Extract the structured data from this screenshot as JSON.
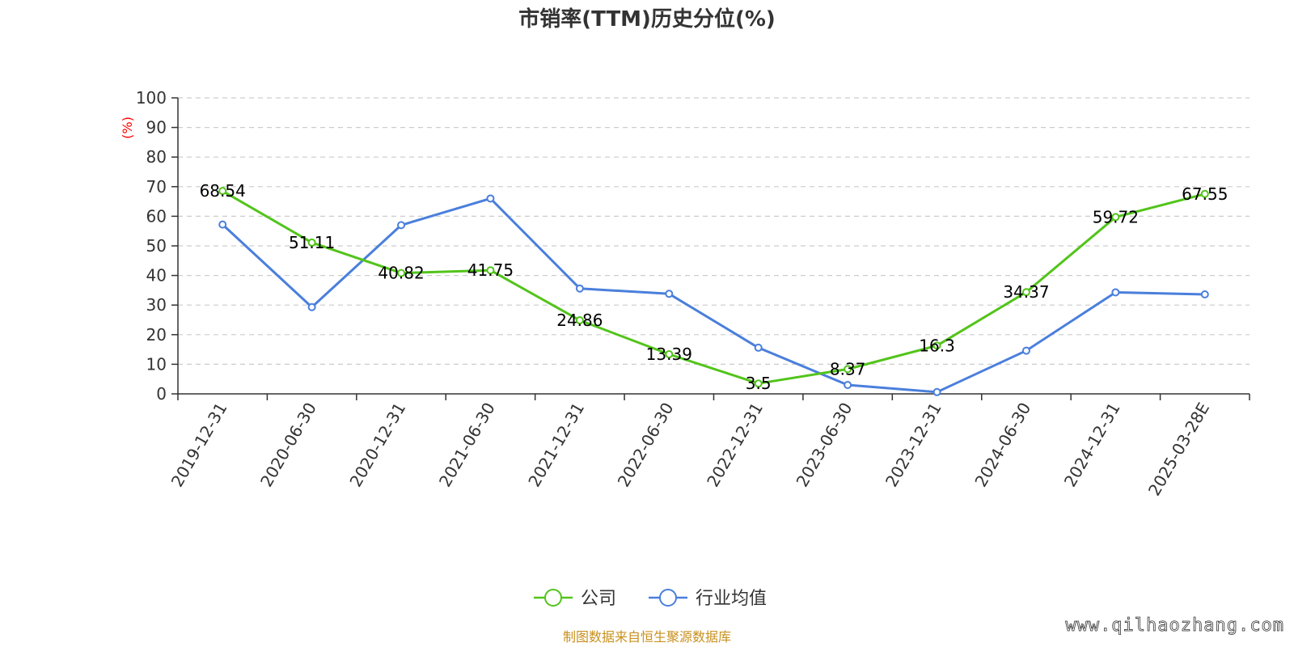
{
  "chart_data": {
    "type": "line",
    "title": "市销率(TTM)历史分位(%)",
    "ylabel": "(%)",
    "ylim": [
      0,
      100
    ],
    "ytick_step": 10,
    "grid": true,
    "legend_position": "bottom-center",
    "categories": [
      "2019-12-31",
      "2020-06-30",
      "2020-12-31",
      "2021-06-30",
      "2021-12-31",
      "2022-06-30",
      "2022-12-31",
      "2023-06-30",
      "2023-12-31",
      "2024-06-30",
      "2024-12-31",
      "2025-03-28E"
    ],
    "series": [
      {
        "name": "公司",
        "color": "#52c41a",
        "show_labels": true,
        "values": [
          68.54,
          51.11,
          40.82,
          41.75,
          24.86,
          13.39,
          3.5,
          8.37,
          16.3,
          34.37,
          59.72,
          67.55
        ]
      },
      {
        "name": "行业均值",
        "color": "#4a7fdc",
        "show_labels": false,
        "values": [
          57.2,
          29.3,
          57.0,
          66.0,
          35.6,
          33.8,
          15.6,
          3.0,
          0.6,
          14.6,
          34.3,
          33.6
        ]
      }
    ]
  },
  "source_note": "制图数据来自恒生聚源数据库",
  "watermark": "www.qilhaozhang.com"
}
